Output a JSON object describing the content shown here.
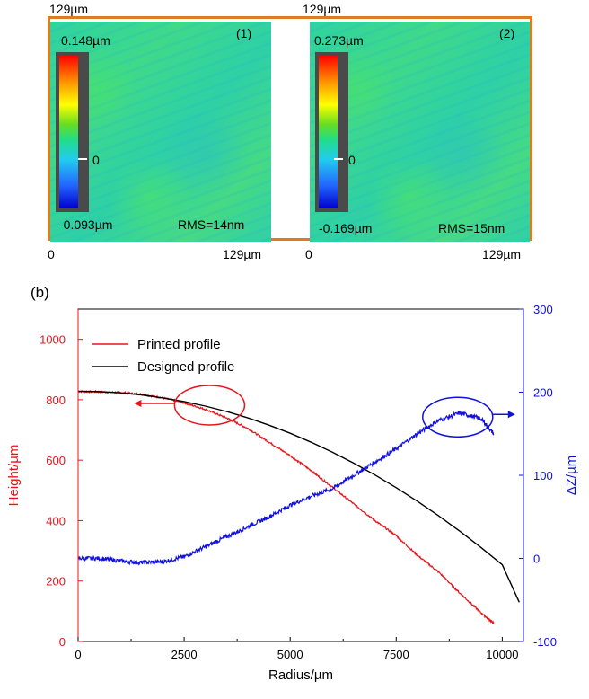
{
  "panel_a": {
    "map1": {
      "index": "(1)",
      "max": "0.148µm",
      "min": "-0.093µm",
      "zero": "0",
      "rms": "RMS=14nm",
      "top_label": "129µm",
      "x_start": "0",
      "x_end": "129µm"
    },
    "map2": {
      "index": "(2)",
      "max": "0.273µm",
      "min": "-0.169µm",
      "zero": "0",
      "rms": "RMS=15nm",
      "top_label": "129µm",
      "x_start": "0",
      "x_end": "129µm"
    },
    "colors": {
      "frame": "#e07b1e"
    }
  },
  "panel_b": {
    "label": "(b)"
  },
  "chart_data": {
    "type": "line",
    "xlabel": "Radius/µm",
    "ylabel_left": "Height/µm",
    "ylabel_right": "ΔZ/µm",
    "xlim": [
      0,
      10500
    ],
    "ylim_left": [
      0,
      1100
    ],
    "ylim_right": [
      -100,
      300
    ],
    "x_ticks": [
      0,
      2500,
      5000,
      7500,
      10000
    ],
    "x_tick_labels": [
      "0",
      "2500",
      "5000",
      "7500",
      "10000"
    ],
    "y_left_ticks": [
      0,
      200,
      400,
      600,
      800,
      1000
    ],
    "y_left_tick_labels": [
      "0",
      "200",
      "400",
      "600",
      "800",
      "1000"
    ],
    "y_right_ticks": [
      -100,
      0,
      100,
      200,
      300
    ],
    "y_right_tick_labels": [
      "-100",
      "0",
      "100",
      "200",
      "300"
    ],
    "legend": {
      "position": "top-left",
      "entries": [
        "Printed profile",
        "Designed profile"
      ]
    },
    "series": [
      {
        "name": "Printed profile",
        "axis": "left",
        "color": "#e8141c",
        "x": [
          0,
          500,
          1000,
          1500,
          2000,
          2500,
          3000,
          3500,
          4000,
          4500,
          5000,
          5500,
          6000,
          6500,
          7000,
          7500,
          8000,
          8500,
          9000,
          9500,
          9800
        ],
        "y": [
          828,
          826,
          824,
          818,
          806,
          790,
          768,
          740,
          705,
          660,
          615,
          565,
          510,
          455,
          400,
          350,
          285,
          230,
          160,
          95,
          60
        ]
      },
      {
        "name": "Designed profile",
        "axis": "left",
        "color": "#000000",
        "x": [
          0,
          500,
          1000,
          1500,
          2000,
          2500,
          3000,
          3500,
          4000,
          4500,
          5000,
          5500,
          6000,
          6500,
          7000,
          7500,
          8000,
          8500,
          9000,
          9500,
          10000,
          10400
        ],
        "y": [
          828,
          827,
          823,
          816,
          806,
          794,
          779,
          761,
          740,
          716,
          689,
          659,
          626,
          590,
          551,
          509,
          464,
          416,
          365,
          311,
          254,
          130
        ]
      },
      {
        "name": "ΔZ",
        "axis": "right",
        "color": "#1010e0",
        "x": [
          0,
          500,
          1000,
          1500,
          2000,
          2500,
          3000,
          3500,
          4000,
          4500,
          5000,
          5500,
          6000,
          6500,
          7000,
          7500,
          8000,
          8500,
          9000,
          9500,
          9800
        ],
        "y": [
          0,
          0,
          -3,
          -5,
          -4,
          2,
          14,
          26,
          38,
          50,
          64,
          75,
          84,
          100,
          116,
          132,
          150,
          166,
          175,
          168,
          150
        ]
      }
    ],
    "annotations": [
      {
        "type": "ellipse",
        "color": "#e8141c",
        "center": [
          3100,
          782
        ],
        "axis": "left",
        "arrow": "left"
      },
      {
        "type": "ellipse",
        "color": "#1010e0",
        "center": [
          8950,
          170
        ],
        "axis": "right",
        "arrow": "right"
      }
    ]
  }
}
